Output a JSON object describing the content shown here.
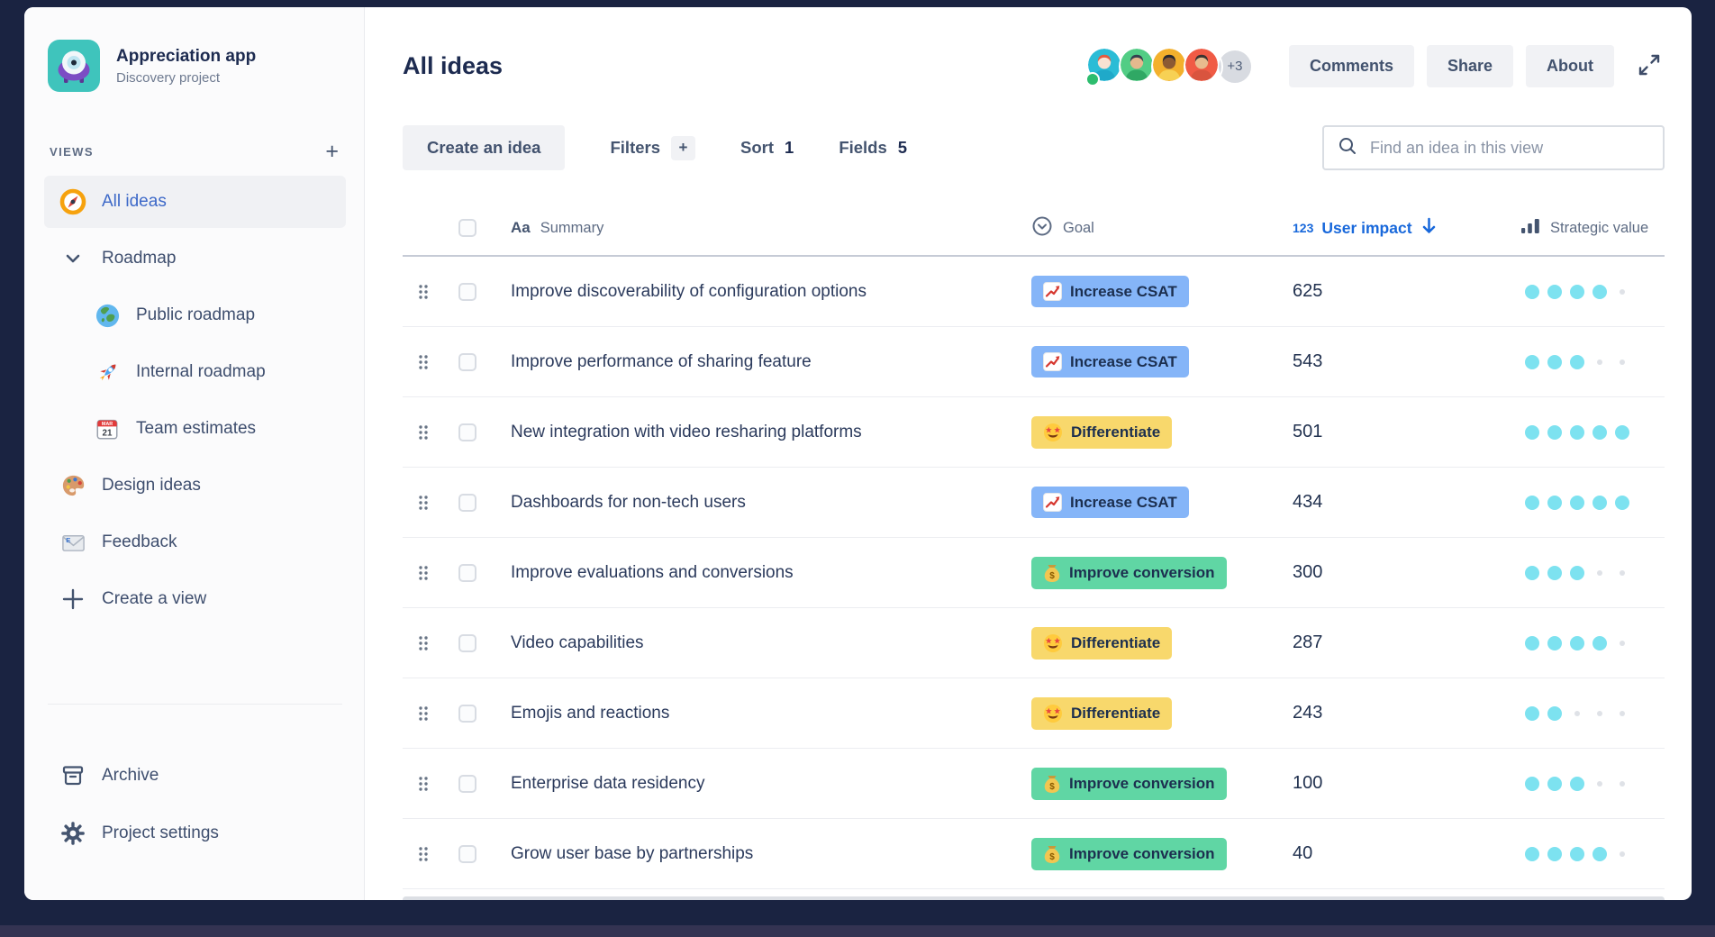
{
  "project": {
    "name": "Appreciation app",
    "type": "Discovery project"
  },
  "sidebar": {
    "views_label": "VIEWS",
    "views_add": "+",
    "items": [
      {
        "label": "All ideas",
        "icon": "compass-icon",
        "level": 0,
        "selected": true
      },
      {
        "label": "Roadmap",
        "icon": "chevron-down-icon",
        "level": 0,
        "selected": false
      },
      {
        "label": "Public roadmap",
        "icon": "globe-icon",
        "level": 1,
        "selected": false
      },
      {
        "label": "Internal roadmap",
        "icon": "rocket-icon",
        "level": 1,
        "selected": false
      },
      {
        "label": "Team estimates",
        "icon": "calendar-icon",
        "level": 1,
        "selected": false
      },
      {
        "label": "Design ideas",
        "icon": "palette-icon",
        "level": 0,
        "selected": false
      },
      {
        "label": "Feedback",
        "icon": "email-icon",
        "level": 0,
        "selected": false
      },
      {
        "label": "Create a view",
        "icon": "plus-icon",
        "level": 0,
        "selected": false
      }
    ],
    "footer_items": [
      {
        "label": "Archive",
        "icon": "archive-icon"
      },
      {
        "label": "Project settings",
        "icon": "gear-icon"
      }
    ]
  },
  "header": {
    "title": "All ideas",
    "avatars": [
      {
        "bg": "#2BBCD6",
        "skin": "#F8E2D2",
        "hair": "#E35A3F",
        "shirt": "#1FA9C9",
        "status": true
      },
      {
        "bg": "#52CD85",
        "skin": "#E5B98E",
        "hair": "#35404F",
        "shirt": "#2FA864",
        "status": false
      },
      {
        "bg": "#F3B02C",
        "skin": "#8C5A33",
        "hair": "#27282E",
        "shirt": "#F7D154",
        "status": false
      },
      {
        "bg": "#F05B45",
        "skin": "#E8BB8E",
        "hair": "#3A3431",
        "shirt": "#D9543E",
        "status": false
      }
    ],
    "avatars_overflow": "+3",
    "buttons": [
      {
        "id": "comments",
        "label": "Comments"
      },
      {
        "id": "share",
        "label": "Share"
      },
      {
        "id": "about",
        "label": "About"
      }
    ]
  },
  "toolbar": {
    "create_label": "Create an idea",
    "filters_label": "Filters",
    "filters_add": "+",
    "sort_label": "Sort",
    "sort_count": "1",
    "fields_label": "Fields",
    "fields_count": "5",
    "search_placeholder": "Find an idea in this view"
  },
  "table": {
    "columns": {
      "summary_type": "Aa",
      "summary": "Summary",
      "goal": "Goal",
      "impact_type": "123",
      "impact": "User impact",
      "strategic": "Strategic value"
    },
    "strategic_max": 5,
    "goals": {
      "csat": {
        "label": "Increase CSAT",
        "bg": "#85B5F8",
        "icon": "chart-increasing-icon"
      },
      "differentiate": {
        "label": "Differentiate",
        "bg": "#F8D86C",
        "icon": "star-struck-icon"
      },
      "conversion": {
        "label": "Improve conversion",
        "bg": "#60D6A4",
        "icon": "money-bag-icon"
      }
    },
    "rows": [
      {
        "summary": "Improve discoverability of configuration options",
        "goal": "csat",
        "impact": "625",
        "strategic": 4
      },
      {
        "summary": "Improve performance of sharing feature",
        "goal": "csat",
        "impact": "543",
        "strategic": 3
      },
      {
        "summary": "New integration with video resharing platforms",
        "goal": "differentiate",
        "impact": "501",
        "strategic": 5
      },
      {
        "summary": "Dashboards for non-tech users",
        "goal": "csat",
        "impact": "434",
        "strategic": 5
      },
      {
        "summary": "Improve evaluations and conversions",
        "goal": "conversion",
        "impact": "300",
        "strategic": 3
      },
      {
        "summary": "Video capabilities",
        "goal": "differentiate",
        "impact": "287",
        "strategic": 4
      },
      {
        "summary": "Emojis and reactions",
        "goal": "differentiate",
        "impact": "243",
        "strategic": 2
      },
      {
        "summary": "Enterprise data residency",
        "goal": "conversion",
        "impact": "100",
        "strategic": 3
      },
      {
        "summary": "Grow user base by partnerships",
        "goal": "conversion",
        "impact": "40",
        "strategic": 4
      }
    ]
  },
  "colors": {
    "frame_background": "#1A2341",
    "accent_blue": "#1868DB",
    "selected_nav": "#3D69C8",
    "dot_filled": "#7DE2F0",
    "dot_empty": "#DFE2E7"
  }
}
